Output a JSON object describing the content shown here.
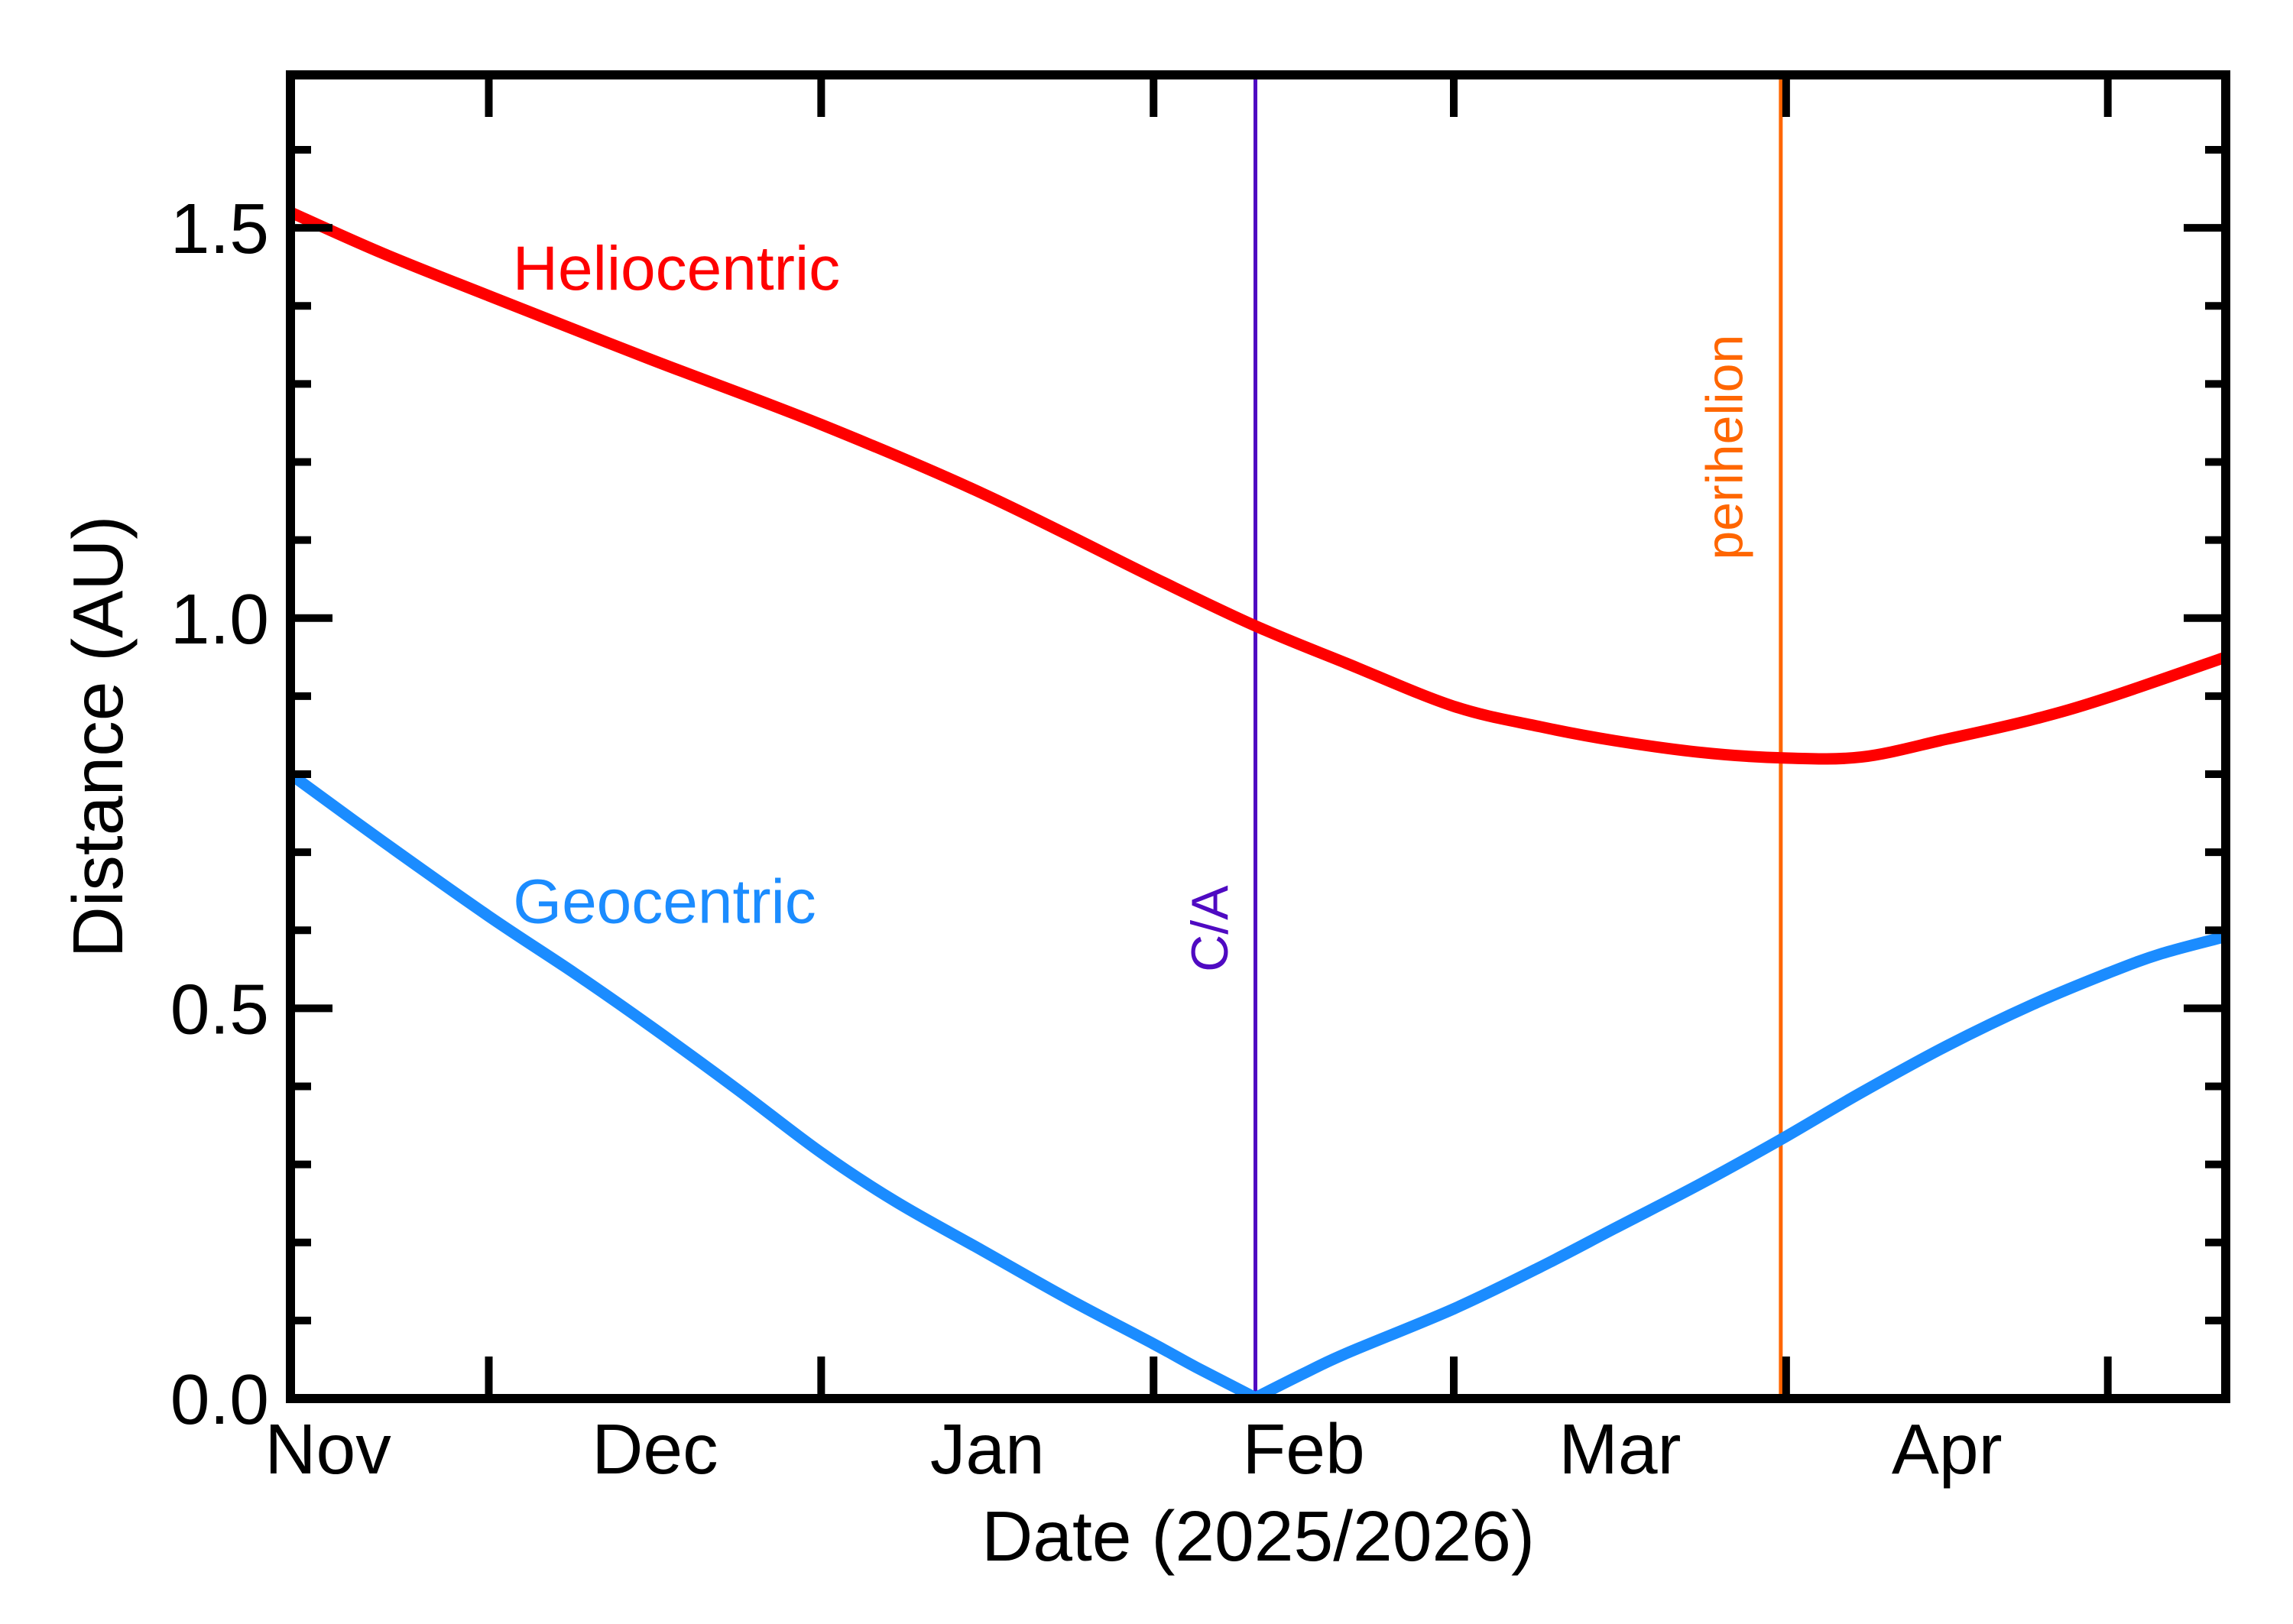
{
  "figure": {
    "background_color": "#ffffff",
    "axis_color": "#000000",
    "text_color": "#000000"
  },
  "chart_data": {
    "type": "line",
    "title": "",
    "xlabel": "Date (2025/2026)",
    "ylabel": "Distance (AU)",
    "grid": false,
    "legend_position": "inline-curve-labels",
    "x_axis": {
      "label": "Date (2025/2026)",
      "unit": "days from 2025-Nov-01",
      "range_days": [
        11.5,
        192
      ],
      "month_boundary_tick_days": [
        30,
        61,
        92,
        120,
        151,
        181
      ],
      "month_labels": [
        {
          "text": "Nov",
          "day": 15
        },
        {
          "text": "Dec",
          "day": 45.5
        },
        {
          "text": "Jan",
          "day": 76.5
        },
        {
          "text": "Feb",
          "day": 106
        },
        {
          "text": "Mar",
          "day": 135.5
        },
        {
          "text": "Apr",
          "day": 166
        }
      ]
    },
    "y_axis": {
      "label": "Distance (AU)",
      "range": [
        0,
        1.696
      ],
      "major_ticks": [
        {
          "value": 0.0,
          "label": "0.0"
        },
        {
          "value": 0.5,
          "label": "0.5"
        },
        {
          "value": 1.0,
          "label": "1.0"
        },
        {
          "value": 1.5,
          "label": "1.5"
        }
      ],
      "minor_tick_step": 0.1
    },
    "series": [
      {
        "name": "Heliocentric",
        "color": "#ff0000",
        "label_anchor_day_au": [
          47.5,
          1.449
        ],
        "points_day_au": [
          [
            11.5,
            1.52
          ],
          [
            20,
            1.468
          ],
          [
            30,
            1.413
          ],
          [
            45,
            1.332
          ],
          [
            61,
            1.248
          ],
          [
            76,
            1.16
          ],
          [
            92,
            1.052
          ],
          [
            101.5,
            0.99
          ],
          [
            110,
            0.942
          ],
          [
            120,
            0.887
          ],
          [
            128,
            0.861
          ],
          [
            135,
            0.843
          ],
          [
            143,
            0.828
          ],
          [
            150.5,
            0.821
          ],
          [
            158,
            0.822
          ],
          [
            166,
            0.845
          ],
          [
            174,
            0.87
          ],
          [
            181,
            0.898
          ],
          [
            192,
            0.95
          ]
        ]
      },
      {
        "name": "Geocentric",
        "color": "#1b8cff",
        "label_anchor_day_au": [
          46.4,
          0.638
        ],
        "points_approach_day_au": [
          [
            11.5,
            0.8
          ],
          [
            20,
            0.715
          ],
          [
            30,
            0.618
          ],
          [
            38,
            0.545
          ],
          [
            45,
            0.478
          ],
          [
            53,
            0.398
          ],
          [
            61,
            0.315
          ],
          [
            68,
            0.252
          ],
          [
            76,
            0.19
          ],
          [
            84,
            0.128
          ],
          [
            92,
            0.07
          ],
          [
            96,
            0.04
          ],
          [
            101.5,
            0.001
          ]
        ],
        "points_departure_day_au": [
          [
            101.5,
            0.001
          ],
          [
            106,
            0.032
          ],
          [
            110,
            0.058
          ],
          [
            120,
            0.115
          ],
          [
            128,
            0.168
          ],
          [
            135,
            0.218
          ],
          [
            143,
            0.275
          ],
          [
            150.5,
            0.332
          ],
          [
            158,
            0.392
          ],
          [
            166,
            0.452
          ],
          [
            174,
            0.505
          ],
          [
            181,
            0.545
          ],
          [
            186,
            0.57
          ],
          [
            192,
            0.592
          ]
        ]
      }
    ],
    "event_lines": [
      {
        "name": "C/A",
        "meaning": "close approach, geocentric distance minimum",
        "color": "#4f0ac2",
        "day": 101.5,
        "label_anchor_day_au": [
          97.2,
          0.602
        ]
      },
      {
        "name": "perihelion",
        "meaning": "heliocentric distance minimum",
        "color": "#ff6600",
        "day": 150.5,
        "label_anchor_day_au": [
          145.2,
          1.219
        ]
      }
    ]
  }
}
